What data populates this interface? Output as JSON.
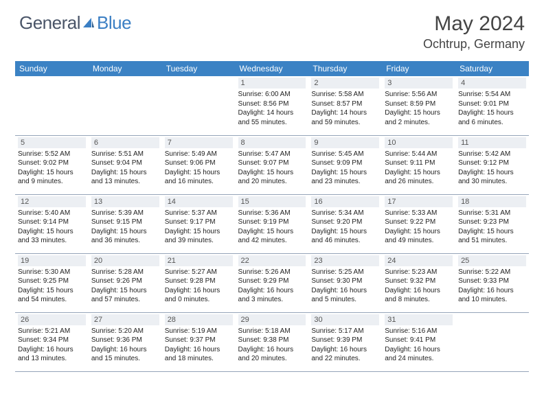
{
  "brand": {
    "word1": "General",
    "word2": "Blue",
    "color1": "#4a5568",
    "color2": "#3b7fc4"
  },
  "title": "May 2024",
  "location": "Ochtrup, Germany",
  "header_bg": "#3b82c4",
  "daynum_bg": "#eceff3",
  "border_color": "#94a3b8",
  "day_names": [
    "Sunday",
    "Monday",
    "Tuesday",
    "Wednesday",
    "Thursday",
    "Friday",
    "Saturday"
  ],
  "weeks": [
    [
      {
        "n": "",
        "sr": "",
        "ss": "",
        "dl": ""
      },
      {
        "n": "",
        "sr": "",
        "ss": "",
        "dl": ""
      },
      {
        "n": "",
        "sr": "",
        "ss": "",
        "dl": ""
      },
      {
        "n": "1",
        "sr": "Sunrise: 6:00 AM",
        "ss": "Sunset: 8:56 PM",
        "dl": "Daylight: 14 hours and 55 minutes."
      },
      {
        "n": "2",
        "sr": "Sunrise: 5:58 AM",
        "ss": "Sunset: 8:57 PM",
        "dl": "Daylight: 14 hours and 59 minutes."
      },
      {
        "n": "3",
        "sr": "Sunrise: 5:56 AM",
        "ss": "Sunset: 8:59 PM",
        "dl": "Daylight: 15 hours and 2 minutes."
      },
      {
        "n": "4",
        "sr": "Sunrise: 5:54 AM",
        "ss": "Sunset: 9:01 PM",
        "dl": "Daylight: 15 hours and 6 minutes."
      }
    ],
    [
      {
        "n": "5",
        "sr": "Sunrise: 5:52 AM",
        "ss": "Sunset: 9:02 PM",
        "dl": "Daylight: 15 hours and 9 minutes."
      },
      {
        "n": "6",
        "sr": "Sunrise: 5:51 AM",
        "ss": "Sunset: 9:04 PM",
        "dl": "Daylight: 15 hours and 13 minutes."
      },
      {
        "n": "7",
        "sr": "Sunrise: 5:49 AM",
        "ss": "Sunset: 9:06 PM",
        "dl": "Daylight: 15 hours and 16 minutes."
      },
      {
        "n": "8",
        "sr": "Sunrise: 5:47 AM",
        "ss": "Sunset: 9:07 PM",
        "dl": "Daylight: 15 hours and 20 minutes."
      },
      {
        "n": "9",
        "sr": "Sunrise: 5:45 AM",
        "ss": "Sunset: 9:09 PM",
        "dl": "Daylight: 15 hours and 23 minutes."
      },
      {
        "n": "10",
        "sr": "Sunrise: 5:44 AM",
        "ss": "Sunset: 9:11 PM",
        "dl": "Daylight: 15 hours and 26 minutes."
      },
      {
        "n": "11",
        "sr": "Sunrise: 5:42 AM",
        "ss": "Sunset: 9:12 PM",
        "dl": "Daylight: 15 hours and 30 minutes."
      }
    ],
    [
      {
        "n": "12",
        "sr": "Sunrise: 5:40 AM",
        "ss": "Sunset: 9:14 PM",
        "dl": "Daylight: 15 hours and 33 minutes."
      },
      {
        "n": "13",
        "sr": "Sunrise: 5:39 AM",
        "ss": "Sunset: 9:15 PM",
        "dl": "Daylight: 15 hours and 36 minutes."
      },
      {
        "n": "14",
        "sr": "Sunrise: 5:37 AM",
        "ss": "Sunset: 9:17 PM",
        "dl": "Daylight: 15 hours and 39 minutes."
      },
      {
        "n": "15",
        "sr": "Sunrise: 5:36 AM",
        "ss": "Sunset: 9:19 PM",
        "dl": "Daylight: 15 hours and 42 minutes."
      },
      {
        "n": "16",
        "sr": "Sunrise: 5:34 AM",
        "ss": "Sunset: 9:20 PM",
        "dl": "Daylight: 15 hours and 46 minutes."
      },
      {
        "n": "17",
        "sr": "Sunrise: 5:33 AM",
        "ss": "Sunset: 9:22 PM",
        "dl": "Daylight: 15 hours and 49 minutes."
      },
      {
        "n": "18",
        "sr": "Sunrise: 5:31 AM",
        "ss": "Sunset: 9:23 PM",
        "dl": "Daylight: 15 hours and 51 minutes."
      }
    ],
    [
      {
        "n": "19",
        "sr": "Sunrise: 5:30 AM",
        "ss": "Sunset: 9:25 PM",
        "dl": "Daylight: 15 hours and 54 minutes."
      },
      {
        "n": "20",
        "sr": "Sunrise: 5:28 AM",
        "ss": "Sunset: 9:26 PM",
        "dl": "Daylight: 15 hours and 57 minutes."
      },
      {
        "n": "21",
        "sr": "Sunrise: 5:27 AM",
        "ss": "Sunset: 9:28 PM",
        "dl": "Daylight: 16 hours and 0 minutes."
      },
      {
        "n": "22",
        "sr": "Sunrise: 5:26 AM",
        "ss": "Sunset: 9:29 PM",
        "dl": "Daylight: 16 hours and 3 minutes."
      },
      {
        "n": "23",
        "sr": "Sunrise: 5:25 AM",
        "ss": "Sunset: 9:30 PM",
        "dl": "Daylight: 16 hours and 5 minutes."
      },
      {
        "n": "24",
        "sr": "Sunrise: 5:23 AM",
        "ss": "Sunset: 9:32 PM",
        "dl": "Daylight: 16 hours and 8 minutes."
      },
      {
        "n": "25",
        "sr": "Sunrise: 5:22 AM",
        "ss": "Sunset: 9:33 PM",
        "dl": "Daylight: 16 hours and 10 minutes."
      }
    ],
    [
      {
        "n": "26",
        "sr": "Sunrise: 5:21 AM",
        "ss": "Sunset: 9:34 PM",
        "dl": "Daylight: 16 hours and 13 minutes."
      },
      {
        "n": "27",
        "sr": "Sunrise: 5:20 AM",
        "ss": "Sunset: 9:36 PM",
        "dl": "Daylight: 16 hours and 15 minutes."
      },
      {
        "n": "28",
        "sr": "Sunrise: 5:19 AM",
        "ss": "Sunset: 9:37 PM",
        "dl": "Daylight: 16 hours and 18 minutes."
      },
      {
        "n": "29",
        "sr": "Sunrise: 5:18 AM",
        "ss": "Sunset: 9:38 PM",
        "dl": "Daylight: 16 hours and 20 minutes."
      },
      {
        "n": "30",
        "sr": "Sunrise: 5:17 AM",
        "ss": "Sunset: 9:39 PM",
        "dl": "Daylight: 16 hours and 22 minutes."
      },
      {
        "n": "31",
        "sr": "Sunrise: 5:16 AM",
        "ss": "Sunset: 9:41 PM",
        "dl": "Daylight: 16 hours and 24 minutes."
      },
      {
        "n": "",
        "sr": "",
        "ss": "",
        "dl": ""
      }
    ]
  ]
}
